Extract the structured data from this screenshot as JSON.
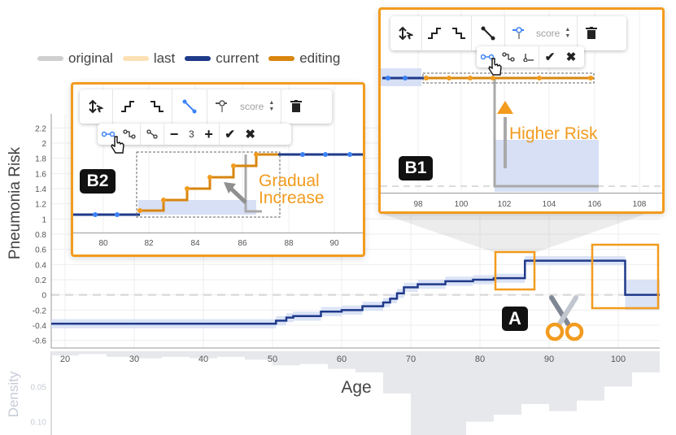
{
  "legend": [
    {
      "label": "original",
      "color": "#cfcfcf"
    },
    {
      "label": "last",
      "color": "#fde0b4"
    },
    {
      "label": "current",
      "color": "#1f3a8a"
    },
    {
      "label": "editing",
      "color": "#d8860f"
    }
  ],
  "colors": {
    "accent": "#f29b1e",
    "current": "#1f3a8a",
    "editing": "#d8860f",
    "confidence_band": "#d7e0f5",
    "original": "#cfcfcf",
    "density_bars": "#e7e8ec"
  },
  "main_chart": {
    "ylabel": "Pneumonia Risk",
    "xlabel": "Age",
    "density_label": "Density",
    "y_ticks": [
      "2.2",
      "2",
      "1.8",
      "1.6",
      "1.4",
      "1.2",
      "1",
      "0.8",
      "0.6",
      "0.4",
      "0.2",
      "0",
      "-0.2",
      "-0.4",
      "-0.6"
    ],
    "x_ticks": [
      "20",
      "30",
      "40",
      "50",
      "60",
      "70",
      "80",
      "90",
      "100"
    ],
    "density_ticks": [
      "0.05",
      "0.10"
    ]
  },
  "badges": {
    "a": "A",
    "b1": "B1",
    "b2": "B2"
  },
  "panel_b1": {
    "toolbar": {
      "score_placeholder": "score"
    },
    "annotation": "Higher Risk",
    "x_ticks": [
      "98",
      "100",
      "102",
      "104",
      "106",
      "108"
    ]
  },
  "panel_b2": {
    "toolbar": {
      "score_placeholder": "score",
      "step_count": "3"
    },
    "annotation_line1": "Gradual",
    "annotation_line2": "Increase",
    "y_ticks": [
      "2.2",
      "2",
      "1.8",
      "1.6",
      "1.4",
      "1.2",
      "1"
    ],
    "x_ticks": [
      "80",
      "82",
      "84",
      "86",
      "88",
      "90"
    ]
  },
  "icons": {
    "move": "move-icon",
    "increase": "increase-icon",
    "decrease": "decrease-icon",
    "interpolate": "interpolate-icon",
    "align": "align-icon",
    "delete": "trash-icon",
    "confirm": "check-icon",
    "cancel": "close-icon",
    "cut": "scissors-icon",
    "cursor": "hand-cursor-icon"
  },
  "chart_data": {
    "type": "line",
    "title": "",
    "xlabel": "Age",
    "ylabel": "Pneumonia Risk",
    "xlim": [
      18,
      106
    ],
    "ylim": [
      -0.7,
      2.3
    ],
    "series": [
      {
        "name": "current",
        "step": true,
        "x": [
          18,
          50,
          50.5,
          52,
          53,
          57,
          60,
          63,
          66,
          67,
          68,
          69,
          71,
          75,
          79,
          82,
          86.5,
          96,
          101,
          106
        ],
        "y": [
          -0.38,
          -0.38,
          -0.34,
          -0.3,
          -0.28,
          -0.22,
          -0.2,
          -0.15,
          -0.1,
          -0.05,
          0.02,
          0.1,
          0.14,
          0.18,
          0.2,
          0.22,
          0.45,
          0.45,
          0.0,
          0.0
        ]
      }
    ],
    "density": {
      "x": [
        18,
        22,
        26,
        30,
        34,
        38,
        42,
        46,
        50,
        54,
        58,
        62,
        66,
        70,
        74,
        78,
        82,
        86,
        90,
        94,
        98,
        102,
        106
      ],
      "y": [
        0.006,
        0.004,
        0.008,
        0.01,
        0.008,
        0.01,
        0.008,
        0.012,
        0.02,
        0.018,
        0.025,
        0.03,
        0.06,
        0.14,
        0.12,
        0.1,
        0.09,
        0.075,
        0.085,
        0.07,
        0.05,
        0.03,
        0.01
      ]
    }
  }
}
